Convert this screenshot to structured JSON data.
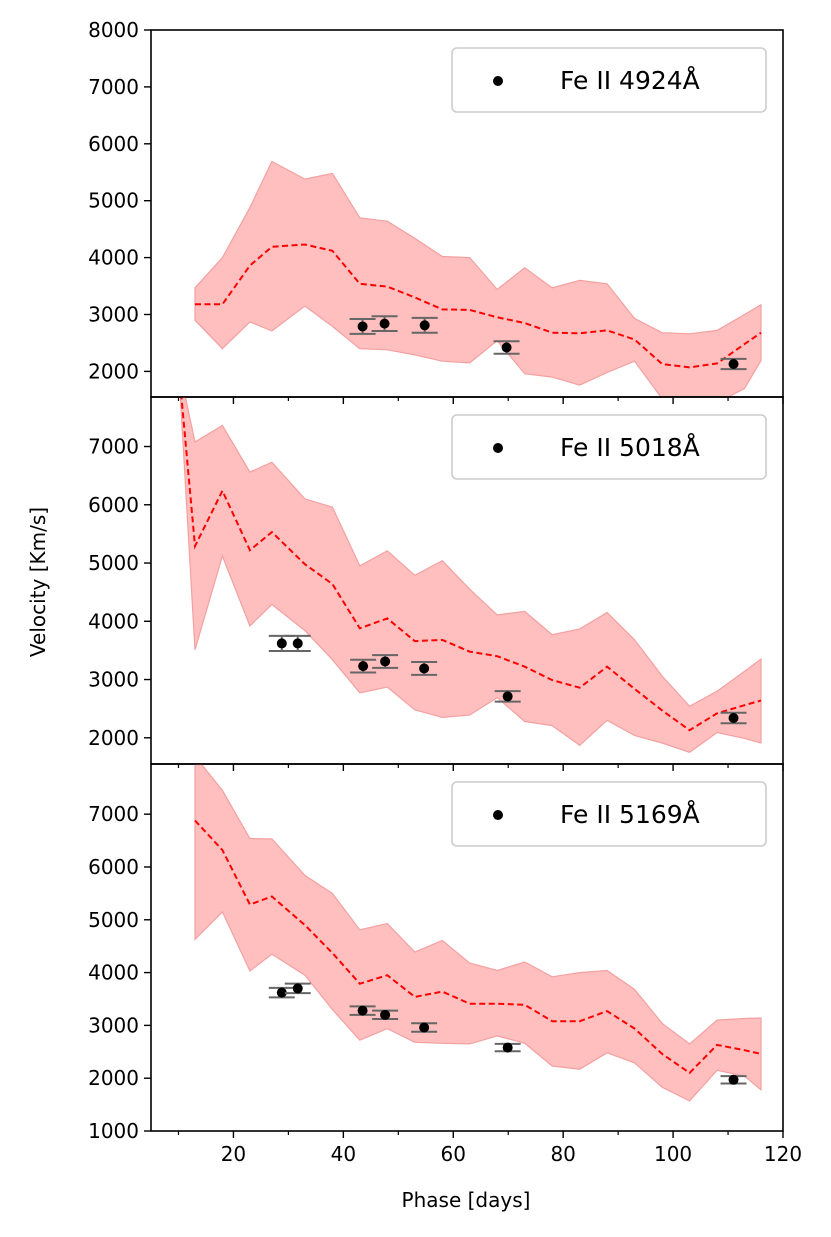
{
  "chart_data": {
    "type": "line",
    "xlabel": "Phase [days]",
    "ylabel": "Velocity [Km/s]",
    "xlim": [
      5,
      120
    ],
    "x_ticks": [
      20,
      40,
      60,
      80,
      100,
      120
    ],
    "x_tick_labels": [
      "20",
      "40",
      "60",
      "80",
      "100",
      "120"
    ],
    "colors": {
      "band": "#ffbfbf",
      "band_edge": "#f3a0a0",
      "model": "#ff0000",
      "points": "#000000",
      "errorbar": "#666666",
      "legend_border": "#cccccc"
    },
    "panels": [
      {
        "legend": "Fe II 4924Å",
        "ylim": [
          1550,
          8000
        ],
        "y_ticks": [
          2000,
          3000,
          4000,
          5000,
          6000,
          7000,
          8000
        ],
        "y_tick_labels": [
          "2000",
          "3000",
          "4000",
          "5000",
          "6000",
          "7000",
          "8000"
        ],
        "model": {
          "x": [
            13,
            18,
            23,
            27,
            33,
            38,
            43,
            48,
            53,
            58,
            63,
            68,
            73,
            78,
            83,
            88,
            93,
            98,
            103,
            108,
            113,
            116
          ],
          "mean": [
            3180,
            3180,
            3860,
            4190,
            4230,
            4120,
            3540,
            3490,
            3300,
            3090,
            3080,
            2950,
            2850,
            2680,
            2670,
            2720,
            2560,
            2130,
            2070,
            2140,
            2480,
            2680
          ],
          "upper": [
            3470,
            4000,
            4880,
            5690,
            5380,
            5480,
            4700,
            4640,
            4340,
            4020,
            4000,
            3440,
            3820,
            3470,
            3600,
            3540,
            2930,
            2680,
            2660,
            2720,
            3000,
            3170
          ],
          "lower": [
            2900,
            2400,
            2870,
            2710,
            3150,
            2790,
            2400,
            2380,
            2290,
            2180,
            2150,
            2540,
            1960,
            1900,
            1760,
            1980,
            2180,
            1520,
            1520,
            1450,
            1700,
            2190
          ]
        },
        "points": [
          {
            "x": 43.5,
            "y": 2790,
            "err": 130
          },
          {
            "x": 47.5,
            "y": 2840,
            "err": 130
          },
          {
            "x": 54.8,
            "y": 2810,
            "err": 130
          },
          {
            "x": 69.7,
            "y": 2420,
            "err": 110
          },
          {
            "x": 111,
            "y": 2130,
            "err": 90
          }
        ]
      },
      {
        "legend": "Fe II 5018Å",
        "ylim": [
          1550,
          7850
        ],
        "y_ticks": [
          2000,
          3000,
          4000,
          5000,
          6000,
          7000
        ],
        "y_tick_labels": [
          "2000",
          "3000",
          "4000",
          "5000",
          "6000",
          "7000"
        ],
        "model": {
          "x": [
            10,
            13,
            18,
            23,
            27,
            33,
            38,
            43,
            48,
            53,
            58,
            63,
            68,
            73,
            78,
            83,
            88,
            93,
            98,
            103,
            108,
            113,
            116
          ],
          "mean": [
            8400,
            5290,
            6240,
            5220,
            5530,
            4980,
            4640,
            3880,
            4050,
            3660,
            3680,
            3480,
            3400,
            3220,
            2990,
            2860,
            3220,
            2840,
            2470,
            2130,
            2420,
            2560,
            2640
          ],
          "upper": [
            8400,
            7080,
            7360,
            6560,
            6730,
            6100,
            5960,
            4950,
            5210,
            4790,
            5040,
            4550,
            4110,
            4170,
            3770,
            3870,
            4150,
            3680,
            3060,
            2540,
            2800,
            3140,
            3350
          ],
          "lower": [
            8400,
            3510,
            5120,
            3920,
            4290,
            3840,
            3340,
            2770,
            2870,
            2480,
            2350,
            2390,
            2690,
            2280,
            2210,
            1870,
            2300,
            2040,
            1910,
            1750,
            2090,
            1990,
            1910
          ]
        },
        "points": [
          {
            "x": 28.8,
            "y": 3620,
            "err": 130
          },
          {
            "x": 31.7,
            "y": 3620,
            "err": 130
          },
          {
            "x": 43.6,
            "y": 3230,
            "err": 110
          },
          {
            "x": 47.6,
            "y": 3310,
            "err": 110
          },
          {
            "x": 54.7,
            "y": 3190,
            "err": 110
          },
          {
            "x": 69.9,
            "y": 2710,
            "err": 90
          },
          {
            "x": 111,
            "y": 2340,
            "err": 90
          }
        ]
      },
      {
        "legend": "Fe II 5169Å",
        "ylim": [
          1000,
          7950
        ],
        "y_ticks": [
          1000,
          2000,
          3000,
          4000,
          5000,
          6000,
          7000
        ],
        "y_tick_labels": [
          "1000",
          "2000",
          "3000",
          "4000",
          "5000",
          "6000",
          "7000"
        ],
        "model": {
          "x": [
            13,
            18,
            23,
            27,
            33,
            38,
            43,
            48,
            53,
            58,
            63,
            68,
            73,
            78,
            83,
            88,
            93,
            98,
            103,
            108,
            113,
            116
          ],
          "mean": [
            6880,
            6320,
            5290,
            5440,
            4900,
            4370,
            3790,
            3950,
            3540,
            3640,
            3410,
            3410,
            3390,
            3080,
            3080,
            3270,
            2940,
            2460,
            2100,
            2630,
            2530,
            2460
          ],
          "upper": [
            8100,
            7450,
            6540,
            6530,
            5840,
            5500,
            4810,
            4930,
            4390,
            4610,
            4180,
            4040,
            4200,
            3920,
            4000,
            4040,
            3680,
            3040,
            2650,
            3100,
            3130,
            3140
          ],
          "lower": [
            4630,
            5150,
            4030,
            4350,
            3950,
            3300,
            2720,
            2940,
            2680,
            2660,
            2650,
            2800,
            2660,
            2230,
            2170,
            2480,
            2290,
            1830,
            1570,
            2150,
            2040,
            1780
          ]
        },
        "points": [
          {
            "x": 28.8,
            "y": 3620,
            "err": 90
          },
          {
            "x": 31.7,
            "y": 3700,
            "err": 90
          },
          {
            "x": 43.5,
            "y": 3280,
            "err": 80
          },
          {
            "x": 47.6,
            "y": 3200,
            "err": 80
          },
          {
            "x": 54.7,
            "y": 2960,
            "err": 80
          },
          {
            "x": 69.9,
            "y": 2580,
            "err": 70
          },
          {
            "x": 111,
            "y": 1970,
            "err": 70
          }
        ]
      }
    ]
  }
}
